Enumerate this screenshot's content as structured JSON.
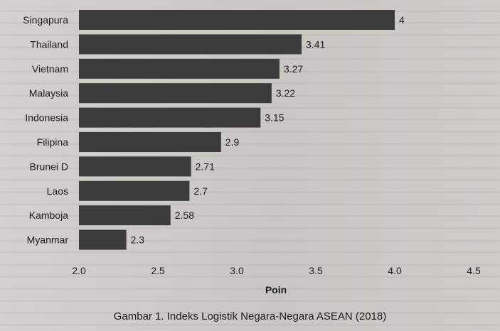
{
  "chart_data": {
    "type": "bar",
    "orientation": "horizontal",
    "categories": [
      "Singapura",
      "Thailand",
      "Vietnam",
      "Malaysia",
      "Indonesia",
      "Filipina",
      "Brunei D",
      "Laos",
      "Kamboja",
      "Myanmar"
    ],
    "values": [
      4,
      3.41,
      3.27,
      3.22,
      3.15,
      2.9,
      2.71,
      2.7,
      2.58,
      2.3
    ],
    "value_labels": [
      "4",
      "3.41",
      "3.27",
      "3.22",
      "3.15",
      "2.9",
      "2.71",
      "2.7",
      "2.58",
      "2.3"
    ],
    "xlabel": "Poin",
    "xlim": [
      2.0,
      4.5
    ],
    "xticks": [
      2.0,
      2.5,
      3.0,
      3.5,
      4.0,
      4.5
    ],
    "xtick_labels": [
      "2.0",
      "2.5",
      "3.0",
      "3.5",
      "4.0",
      "4.5"
    ],
    "bar_color": "#3b3b3b",
    "grid": false,
    "legend": false
  },
  "caption": "Gambar 1. Indeks Logistik Negara-Negara ASEAN (2018)"
}
